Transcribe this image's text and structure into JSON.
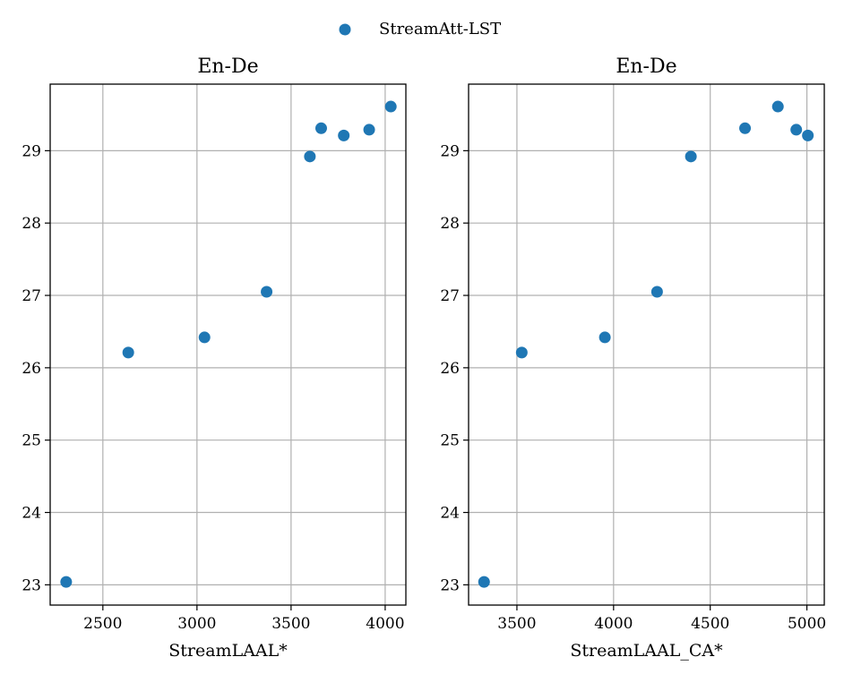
{
  "chart_data": [
    {
      "type": "scatter",
      "title": "En-De",
      "xlabel": "StreamLAAL*",
      "ylabel": "",
      "xlim": [
        2220,
        4110
      ],
      "ylim": [
        22.72,
        29.92
      ],
      "xticks": [
        2500,
        3000,
        3500,
        4000
      ],
      "yticks": [
        23,
        24,
        25,
        26,
        27,
        28,
        29
      ],
      "grid": true,
      "series": [
        {
          "name": "StreamAtt-LST",
          "color": "#1f77b4",
          "x": [
            2305,
            2635,
            3040,
            3370,
            3600,
            3660,
            3780,
            3915,
            4030
          ],
          "y": [
            23.04,
            26.21,
            26.42,
            27.05,
            28.92,
            29.31,
            29.21,
            29.29,
            29.61
          ]
        }
      ]
    },
    {
      "type": "scatter",
      "title": "En-De",
      "xlabel": "StreamLAAL_CA*",
      "ylabel": "",
      "xlim": [
        3250,
        5090
      ],
      "ylim": [
        22.72,
        29.92
      ],
      "xticks": [
        3500,
        4000,
        4500,
        5000
      ],
      "yticks": [
        23,
        24,
        25,
        26,
        27,
        28,
        29
      ],
      "grid": true,
      "series": [
        {
          "name": "StreamAtt-LST",
          "color": "#1f77b4",
          "x": [
            3330,
            3525,
            3955,
            4225,
            4400,
            4680,
            4850,
            4945,
            5005
          ],
          "y": [
            23.04,
            26.21,
            26.42,
            27.05,
            28.92,
            29.31,
            29.61,
            29.29,
            29.21
          ]
        }
      ]
    }
  ],
  "legend": {
    "label": "StreamAtt-LST",
    "color": "#1f77b4",
    "placement": "top-center"
  }
}
